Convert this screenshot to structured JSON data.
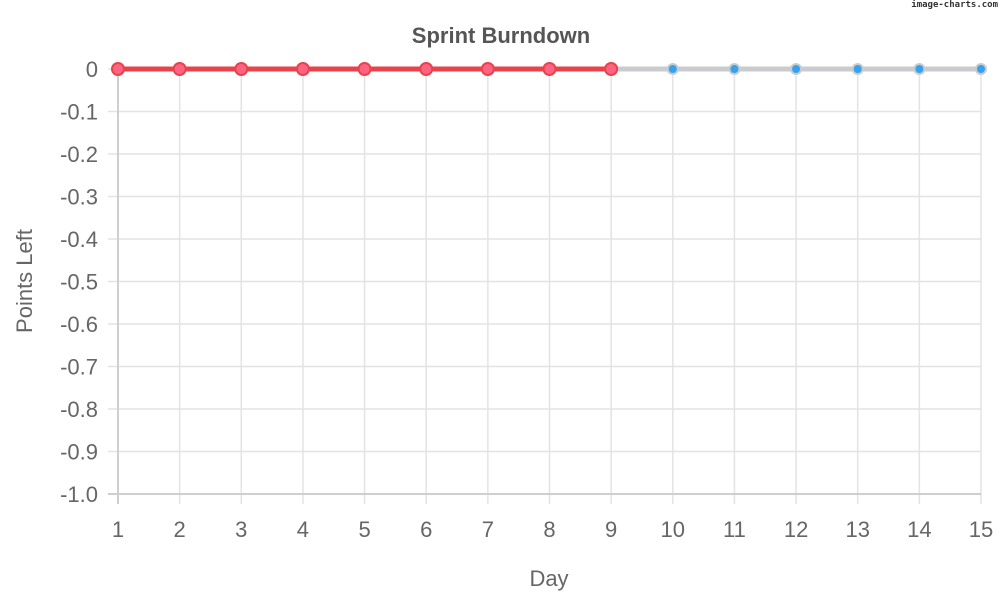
{
  "watermark": "image-charts.com",
  "chart_data": {
    "type": "line",
    "title": "Sprint Burndown",
    "xlabel": "Day",
    "ylabel": "Points Left",
    "x": [
      1,
      2,
      3,
      4,
      5,
      6,
      7,
      8,
      9,
      10,
      11,
      12,
      13,
      14,
      15
    ],
    "xlim": [
      1,
      15
    ],
    "ylim": [
      -1.0,
      0
    ],
    "yticks": [
      "0",
      "-0.1",
      "-0.2",
      "-0.3",
      "-0.4",
      "-0.5",
      "-0.6",
      "-0.7",
      "-0.8",
      "-0.9",
      "-1.0"
    ],
    "ytick_values": [
      0,
      -0.1,
      -0.2,
      -0.3,
      -0.4,
      -0.5,
      -0.6,
      -0.7,
      -0.8,
      -0.9,
      -1.0
    ],
    "grid": true,
    "legend": "none",
    "series": [
      {
        "x": [
          1,
          2,
          3,
          4,
          5,
          6,
          7,
          8,
          9,
          10,
          11,
          12,
          13,
          14,
          15
        ],
        "values": [
          0,
          0,
          0,
          0,
          0,
          0,
          0,
          0,
          0,
          0,
          0,
          0,
          0,
          0,
          0
        ],
        "line_color": "#c9cbcf",
        "point_color": "#36a2eb"
      },
      {
        "x": [
          1,
          2,
          3,
          4,
          5,
          6,
          7,
          8,
          9
        ],
        "values": [
          0,
          0,
          0,
          0,
          0,
          0,
          0,
          0,
          0
        ],
        "line_color": "#e8434a",
        "point_color": "#ff6384"
      }
    ]
  }
}
